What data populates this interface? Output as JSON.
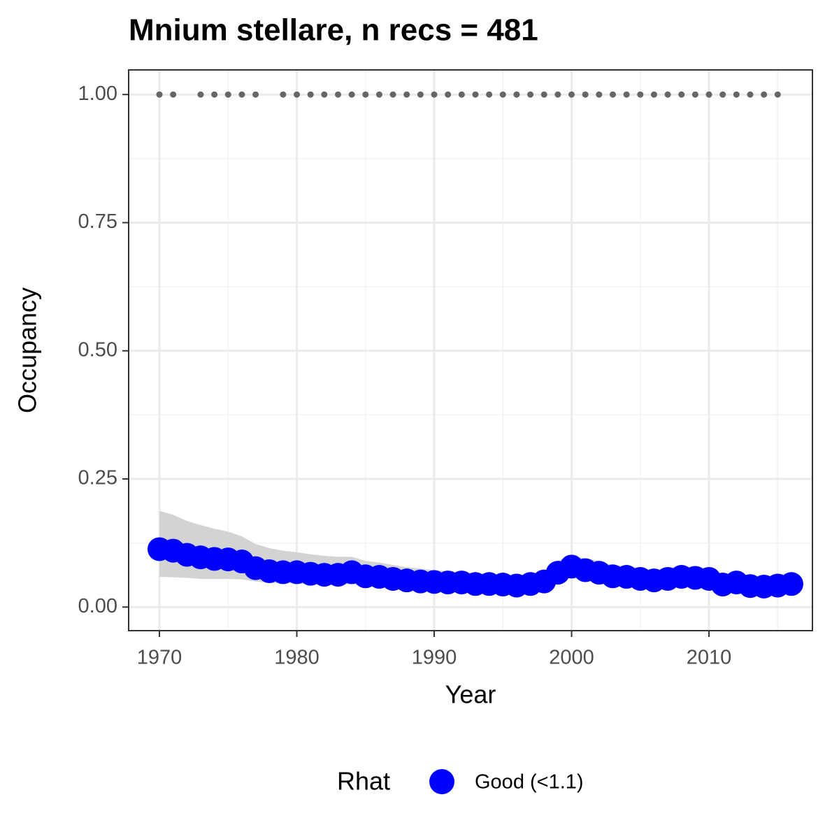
{
  "chart_data": {
    "type": "scatter",
    "title": "Mnium stellare, n recs = 481",
    "x_label": "Year",
    "y_label": "Occupancy",
    "legend_title": "Rhat",
    "legend_position": "bottom",
    "grid": true,
    "xlim": [
      1967.76,
      2017.53
    ],
    "ylim": [
      -0.046,
      1.048
    ],
    "xticks": [
      1970,
      1980,
      1990,
      2000,
      2010
    ],
    "x_minor_grid": [
      1975,
      1985,
      1995,
      2005,
      2015
    ],
    "yticks": [
      {
        "value": 0,
        "label": "0.00"
      },
      {
        "value": 0.25,
        "label": "0.25"
      },
      {
        "value": 0.5,
        "label": "0.50"
      },
      {
        "value": 0.75,
        "label": "0.75"
      },
      {
        "value": 1,
        "label": "1.00"
      }
    ],
    "y_minor_grid": [
      0.125,
      0.375,
      0.625,
      0.875
    ],
    "x": [
      1970,
      1971,
      1972,
      1973,
      1974,
      1975,
      1976,
      1977,
      1978,
      1979,
      1980,
      1981,
      1982,
      1983,
      1984,
      1985,
      1986,
      1987,
      1988,
      1989,
      1990,
      1991,
      1992,
      1993,
      1994,
      1995,
      1996,
      1997,
      1998,
      1999,
      2000,
      2001,
      2002,
      2003,
      2004,
      2005,
      2006,
      2007,
      2008,
      2009,
      2010,
      2011,
      2012,
      2013,
      2014,
      2015,
      2016
    ],
    "series": [
      {
        "name": "Good (<1.1)",
        "color": "#0000ff",
        "values": [
          0.113,
          0.11,
          0.102,
          0.097,
          0.094,
          0.093,
          0.089,
          0.076,
          0.07,
          0.068,
          0.068,
          0.065,
          0.063,
          0.063,
          0.068,
          0.06,
          0.059,
          0.055,
          0.052,
          0.05,
          0.049,
          0.048,
          0.048,
          0.045,
          0.045,
          0.044,
          0.042,
          0.045,
          0.05,
          0.067,
          0.079,
          0.072,
          0.067,
          0.06,
          0.059,
          0.055,
          0.052,
          0.055,
          0.059,
          0.057,
          0.055,
          0.044,
          0.048,
          0.041,
          0.04,
          0.042,
          0.045
        ]
      }
    ],
    "band": {
      "color": "#d3d3d3",
      "lower": [
        0.059,
        0.058,
        0.057,
        0.055,
        0.055,
        0.055,
        0.054,
        0.05,
        0.047,
        0.046,
        0.046,
        0.044,
        0.043,
        0.043,
        0.045,
        0.04,
        0.039,
        0.036,
        0.034,
        0.033,
        0.032,
        0.031,
        0.031,
        0.029,
        0.029,
        0.028,
        0.027,
        0.029,
        0.033,
        0.048,
        0.059,
        0.052,
        0.047,
        0.041,
        0.04,
        0.037,
        0.035,
        0.037,
        0.04,
        0.039,
        0.037,
        0.028,
        0.031,
        0.026,
        0.025,
        0.027,
        0.029
      ],
      "upper": [
        0.188,
        0.18,
        0.168,
        0.16,
        0.153,
        0.147,
        0.138,
        0.123,
        0.115,
        0.11,
        0.107,
        0.103,
        0.1,
        0.098,
        0.098,
        0.09,
        0.087,
        0.082,
        0.078,
        0.075,
        0.072,
        0.07,
        0.069,
        0.066,
        0.065,
        0.064,
        0.062,
        0.065,
        0.07,
        0.09,
        0.1,
        0.095,
        0.09,
        0.082,
        0.08,
        0.076,
        0.073,
        0.076,
        0.08,
        0.078,
        0.076,
        0.064,
        0.068,
        0.061,
        0.06,
        0.063,
        0.068
      ]
    },
    "records": {
      "color": "#666666",
      "x": [
        1970,
        1971,
        1973,
        1974,
        1975,
        1976,
        1977,
        1979,
        1980,
        1981,
        1982,
        1983,
        1984,
        1985,
        1986,
        1987,
        1988,
        1989,
        1990,
        1991,
        1992,
        1993,
        1994,
        1995,
        1996,
        1997,
        1998,
        1999,
        2000,
        2001,
        2002,
        2003,
        2004,
        2005,
        2006,
        2007,
        2008,
        2009,
        2010,
        2011,
        2012,
        2013,
        2014,
        2015
      ],
      "values": [
        1,
        1,
        1,
        1,
        1,
        1,
        1,
        1,
        1,
        1,
        1,
        1,
        1,
        1,
        1,
        1,
        1,
        1,
        1,
        1,
        1,
        1,
        1,
        1,
        1,
        1,
        1,
        1,
        1,
        1,
        1,
        1,
        1,
        1,
        1,
        1,
        1,
        1,
        1,
        1,
        1,
        1,
        1,
        1
      ]
    }
  }
}
